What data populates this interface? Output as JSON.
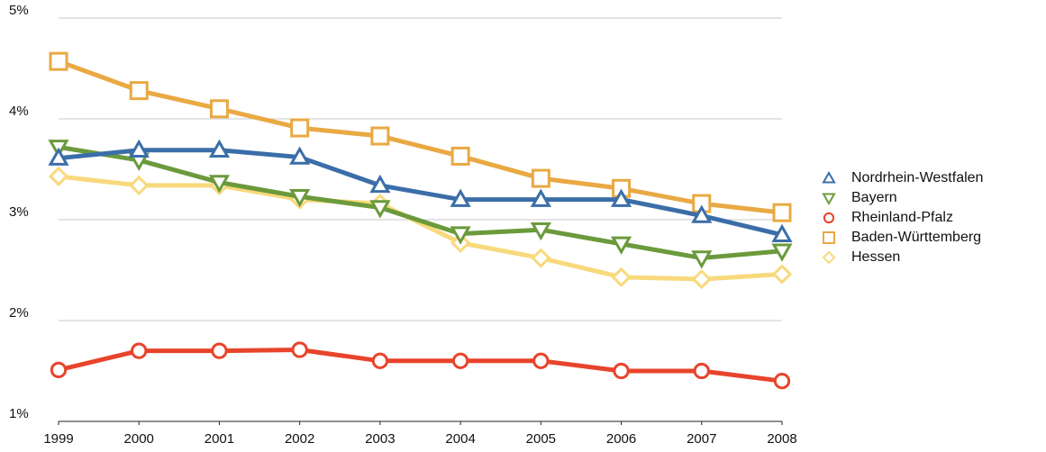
{
  "chart_data": {
    "type": "line",
    "categories": [
      "1999",
      "2000",
      "2001",
      "2002",
      "2003",
      "2004",
      "2005",
      "2006",
      "2007",
      "2008"
    ],
    "ylim": [
      1,
      5
    ],
    "yticks": [
      {
        "value": 1,
        "label": "1%"
      },
      {
        "value": 2,
        "label": "2%"
      },
      {
        "value": 3,
        "label": "3%"
      },
      {
        "value": 4,
        "label": "4%"
      },
      {
        "value": 5,
        "label": "5%"
      }
    ],
    "grid": true,
    "legend": "right",
    "series": [
      {
        "name": "Nordrhein-Westfalen",
        "color": "#3b6ea8",
        "marker": "triangle-up",
        "values": [
          3.61,
          3.69,
          3.69,
          3.62,
          3.34,
          3.2,
          3.2,
          3.2,
          3.04,
          2.85
        ]
      },
      {
        "name": "Bayern",
        "color": "#6b9a3c",
        "marker": "triangle-down",
        "values": [
          3.72,
          3.59,
          3.37,
          3.23,
          3.12,
          2.86,
          2.9,
          2.76,
          2.62,
          2.69
        ]
      },
      {
        "name": "Rheinland-Pfalz",
        "color": "#e8442b",
        "marker": "circle",
        "values": [
          1.51,
          1.7,
          1.7,
          1.71,
          1.6,
          1.6,
          1.6,
          1.5,
          1.5,
          1.4
        ]
      },
      {
        "name": "Baden-Württemberg",
        "color": "#e9a943",
        "marker": "square",
        "values": [
          4.57,
          4.28,
          4.1,
          3.91,
          3.83,
          3.63,
          3.41,
          3.31,
          3.16,
          3.07
        ]
      },
      {
        "name": "Hessen",
        "color": "#f8d97c",
        "marker": "diamond",
        "values": [
          3.43,
          3.34,
          3.34,
          3.2,
          3.16,
          2.77,
          2.62,
          2.43,
          2.41,
          2.46
        ]
      }
    ]
  }
}
